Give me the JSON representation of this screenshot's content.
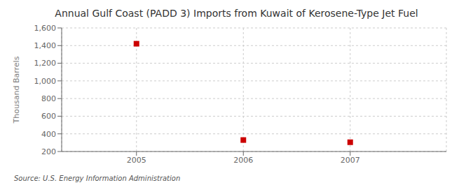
{
  "chart_data": {
    "type": "scatter",
    "title": "Annual Gulf Coast (PADD 3) Imports from Kuwait of Kerosene-Type Jet Fuel",
    "ylabel": "Thousand Barrels",
    "annotations": [
      "Source: U.S. Energy Information Administration"
    ],
    "x": [
      2005,
      2006,
      2007
    ],
    "values": [
      1421,
      330,
      305
    ],
    "color": "#cc0000",
    "marker": "square",
    "xlim": [
      2004.3,
      2007.9
    ],
    "xticks": [
      2005,
      2006,
      2007
    ],
    "ylim": [
      200,
      1600
    ],
    "yticks": [
      200,
      400,
      600,
      800,
      {
        "value": 1000,
        "label": "1,000"
      },
      {
        "value": 1200,
        "label": "1,200"
      },
      {
        "value": 1400,
        "label": "1,400"
      },
      {
        "value": 1600,
        "label": "1,600"
      }
    ],
    "grid": true
  }
}
